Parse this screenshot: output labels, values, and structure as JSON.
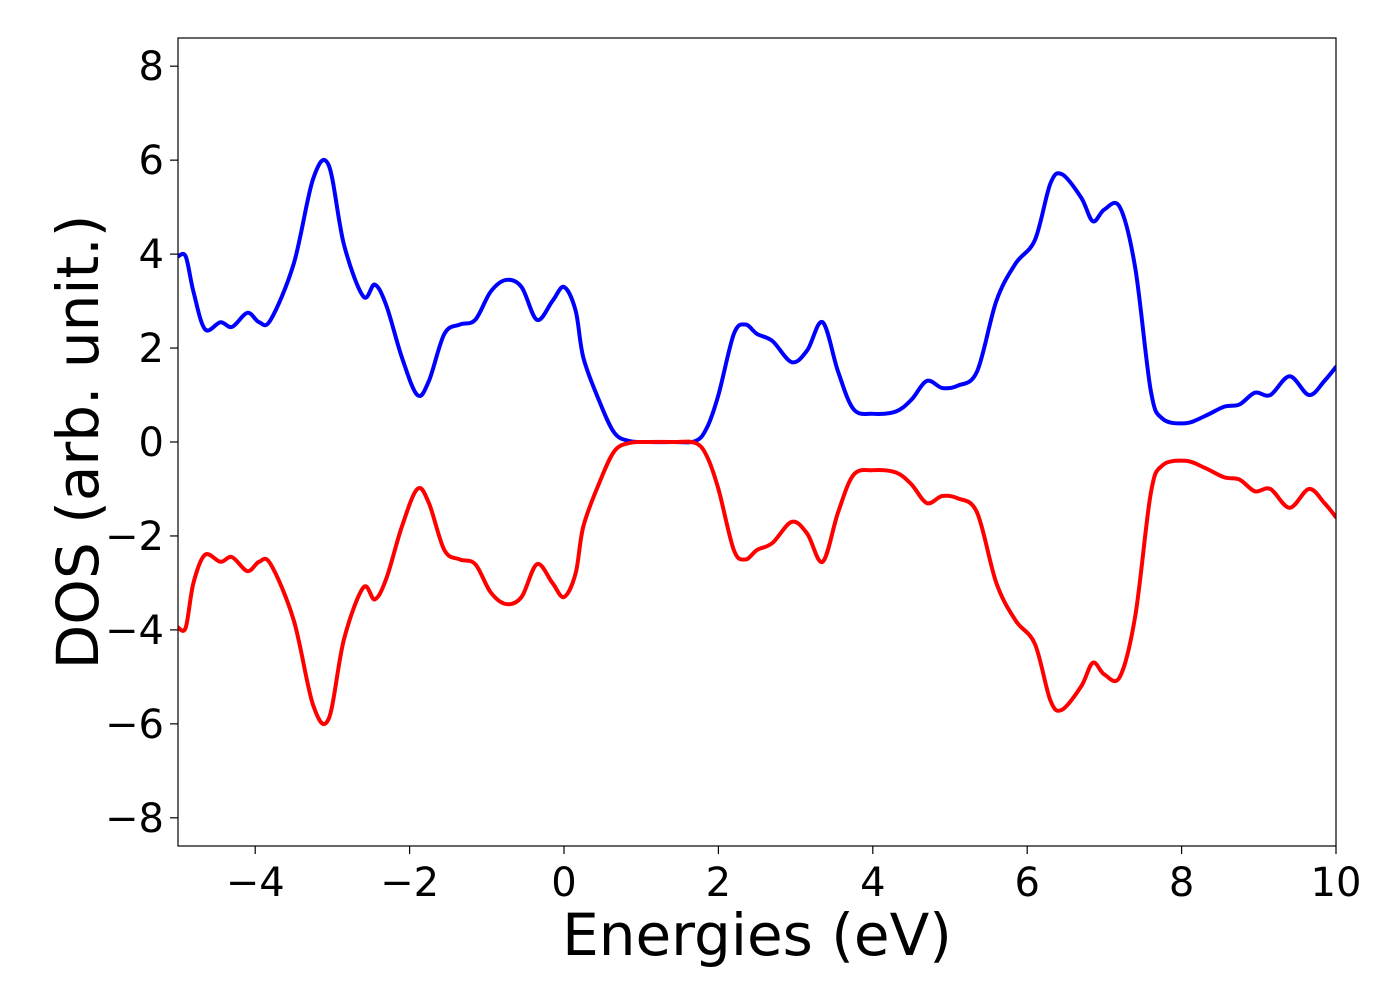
{
  "chart_data": {
    "type": "line",
    "title": "",
    "xlabel": "Energies (eV)",
    "ylabel": "DOS (arb. unit.)",
    "xlim": [
      -5,
      10
    ],
    "ylim": [
      -8.6,
      8.6
    ],
    "x_ticks": [
      -4,
      -2,
      0,
      2,
      4,
      6,
      8,
      10
    ],
    "x_tick_labels": [
      "−4",
      "−2",
      "0",
      "2",
      "4",
      "6",
      "8",
      "10"
    ],
    "y_ticks": [
      -8,
      -6,
      -4,
      -2,
      0,
      2,
      4,
      6,
      8
    ],
    "y_tick_labels": [
      "−8",
      "−6",
      "−4",
      "−2",
      "0",
      "2",
      "4",
      "6",
      "8"
    ],
    "grid": false,
    "legend": "none",
    "series": [
      {
        "color": "#0000ff",
        "points": [
          [
            -5.0,
            3.95
          ],
          [
            -4.9,
            3.95
          ],
          [
            -4.8,
            3.2
          ],
          [
            -4.65,
            2.4
          ],
          [
            -4.45,
            2.55
          ],
          [
            -4.3,
            2.45
          ],
          [
            -4.1,
            2.75
          ],
          [
            -3.95,
            2.55
          ],
          [
            -3.8,
            2.6
          ],
          [
            -3.5,
            3.8
          ],
          [
            -3.25,
            5.6
          ],
          [
            -3.05,
            5.9
          ],
          [
            -2.85,
            4.2
          ],
          [
            -2.6,
            3.1
          ],
          [
            -2.45,
            3.35
          ],
          [
            -2.3,
            2.9
          ],
          [
            -2.1,
            1.8
          ],
          [
            -1.9,
            1.0
          ],
          [
            -1.75,
            1.3
          ],
          [
            -1.55,
            2.3
          ],
          [
            -1.35,
            2.5
          ],
          [
            -1.15,
            2.6
          ],
          [
            -0.95,
            3.2
          ],
          [
            -0.75,
            3.45
          ],
          [
            -0.55,
            3.3
          ],
          [
            -0.35,
            2.6
          ],
          [
            -0.15,
            3.0
          ],
          [
            0.0,
            3.3
          ],
          [
            0.15,
            2.8
          ],
          [
            0.25,
            1.8
          ],
          [
            0.45,
            0.9
          ],
          [
            0.65,
            0.2
          ],
          [
            0.85,
            0.02
          ],
          [
            1.1,
            0.0
          ],
          [
            1.4,
            0.0
          ],
          [
            1.7,
            0.02
          ],
          [
            1.85,
            0.3
          ],
          [
            2.0,
            1.0
          ],
          [
            2.2,
            2.3
          ],
          [
            2.35,
            2.5
          ],
          [
            2.5,
            2.3
          ],
          [
            2.7,
            2.15
          ],
          [
            2.95,
            1.7
          ],
          [
            3.15,
            1.95
          ],
          [
            3.35,
            2.55
          ],
          [
            3.55,
            1.5
          ],
          [
            3.75,
            0.7
          ],
          [
            4.0,
            0.6
          ],
          [
            4.3,
            0.65
          ],
          [
            4.5,
            0.9
          ],
          [
            4.7,
            1.3
          ],
          [
            4.9,
            1.15
          ],
          [
            5.1,
            1.2
          ],
          [
            5.35,
            1.5
          ],
          [
            5.6,
            3.0
          ],
          [
            5.85,
            3.8
          ],
          [
            6.1,
            4.3
          ],
          [
            6.3,
            5.5
          ],
          [
            6.45,
            5.7
          ],
          [
            6.7,
            5.2
          ],
          [
            6.85,
            4.7
          ],
          [
            7.0,
            4.95
          ],
          [
            7.2,
            5.0
          ],
          [
            7.4,
            3.7
          ],
          [
            7.6,
            1.1
          ],
          [
            7.75,
            0.5
          ],
          [
            8.05,
            0.4
          ],
          [
            8.3,
            0.55
          ],
          [
            8.55,
            0.75
          ],
          [
            8.75,
            0.8
          ],
          [
            8.95,
            1.05
          ],
          [
            9.15,
            1.0
          ],
          [
            9.4,
            1.4
          ],
          [
            9.65,
            1.0
          ],
          [
            9.85,
            1.3
          ],
          [
            10.0,
            1.6
          ]
        ]
      },
      {
        "color": "#ff0000",
        "points": [
          [
            -5.0,
            -3.95
          ],
          [
            -4.9,
            -3.95
          ],
          [
            -4.8,
            -3.0
          ],
          [
            -4.65,
            -2.4
          ],
          [
            -4.45,
            -2.55
          ],
          [
            -4.3,
            -2.45
          ],
          [
            -4.1,
            -2.75
          ],
          [
            -3.95,
            -2.55
          ],
          [
            -3.8,
            -2.6
          ],
          [
            -3.5,
            -3.8
          ],
          [
            -3.25,
            -5.6
          ],
          [
            -3.05,
            -5.9
          ],
          [
            -2.85,
            -4.2
          ],
          [
            -2.6,
            -3.1
          ],
          [
            -2.45,
            -3.35
          ],
          [
            -2.3,
            -2.9
          ],
          [
            -2.1,
            -1.8
          ],
          [
            -1.9,
            -1.0
          ],
          [
            -1.75,
            -1.3
          ],
          [
            -1.55,
            -2.3
          ],
          [
            -1.35,
            -2.5
          ],
          [
            -1.15,
            -2.6
          ],
          [
            -0.95,
            -3.2
          ],
          [
            -0.75,
            -3.45
          ],
          [
            -0.55,
            -3.3
          ],
          [
            -0.35,
            -2.6
          ],
          [
            -0.15,
            -3.0
          ],
          [
            0.0,
            -3.3
          ],
          [
            0.15,
            -2.8
          ],
          [
            0.25,
            -1.8
          ],
          [
            0.45,
            -0.9
          ],
          [
            0.65,
            -0.2
          ],
          [
            0.85,
            -0.02
          ],
          [
            1.1,
            0.0
          ],
          [
            1.4,
            0.0
          ],
          [
            1.7,
            -0.02
          ],
          [
            1.85,
            -0.3
          ],
          [
            2.0,
            -1.0
          ],
          [
            2.2,
            -2.3
          ],
          [
            2.35,
            -2.5
          ],
          [
            2.5,
            -2.3
          ],
          [
            2.7,
            -2.15
          ],
          [
            2.95,
            -1.7
          ],
          [
            3.15,
            -1.95
          ],
          [
            3.35,
            -2.55
          ],
          [
            3.55,
            -1.5
          ],
          [
            3.75,
            -0.7
          ],
          [
            4.0,
            -0.6
          ],
          [
            4.3,
            -0.65
          ],
          [
            4.5,
            -0.9
          ],
          [
            4.7,
            -1.3
          ],
          [
            4.9,
            -1.15
          ],
          [
            5.1,
            -1.2
          ],
          [
            5.35,
            -1.5
          ],
          [
            5.6,
            -3.0
          ],
          [
            5.85,
            -3.8
          ],
          [
            6.1,
            -4.3
          ],
          [
            6.3,
            -5.5
          ],
          [
            6.45,
            -5.7
          ],
          [
            6.7,
            -5.2
          ],
          [
            6.85,
            -4.7
          ],
          [
            7.0,
            -4.95
          ],
          [
            7.2,
            -5.0
          ],
          [
            7.4,
            -3.7
          ],
          [
            7.6,
            -1.1
          ],
          [
            7.75,
            -0.5
          ],
          [
            8.05,
            -0.4
          ],
          [
            8.3,
            -0.55
          ],
          [
            8.55,
            -0.75
          ],
          [
            8.75,
            -0.8
          ],
          [
            8.95,
            -1.05
          ],
          [
            9.15,
            -1.0
          ],
          [
            9.4,
            -1.4
          ],
          [
            9.65,
            -1.0
          ],
          [
            9.85,
            -1.3
          ],
          [
            10.0,
            -1.6
          ]
        ]
      }
    ]
  }
}
